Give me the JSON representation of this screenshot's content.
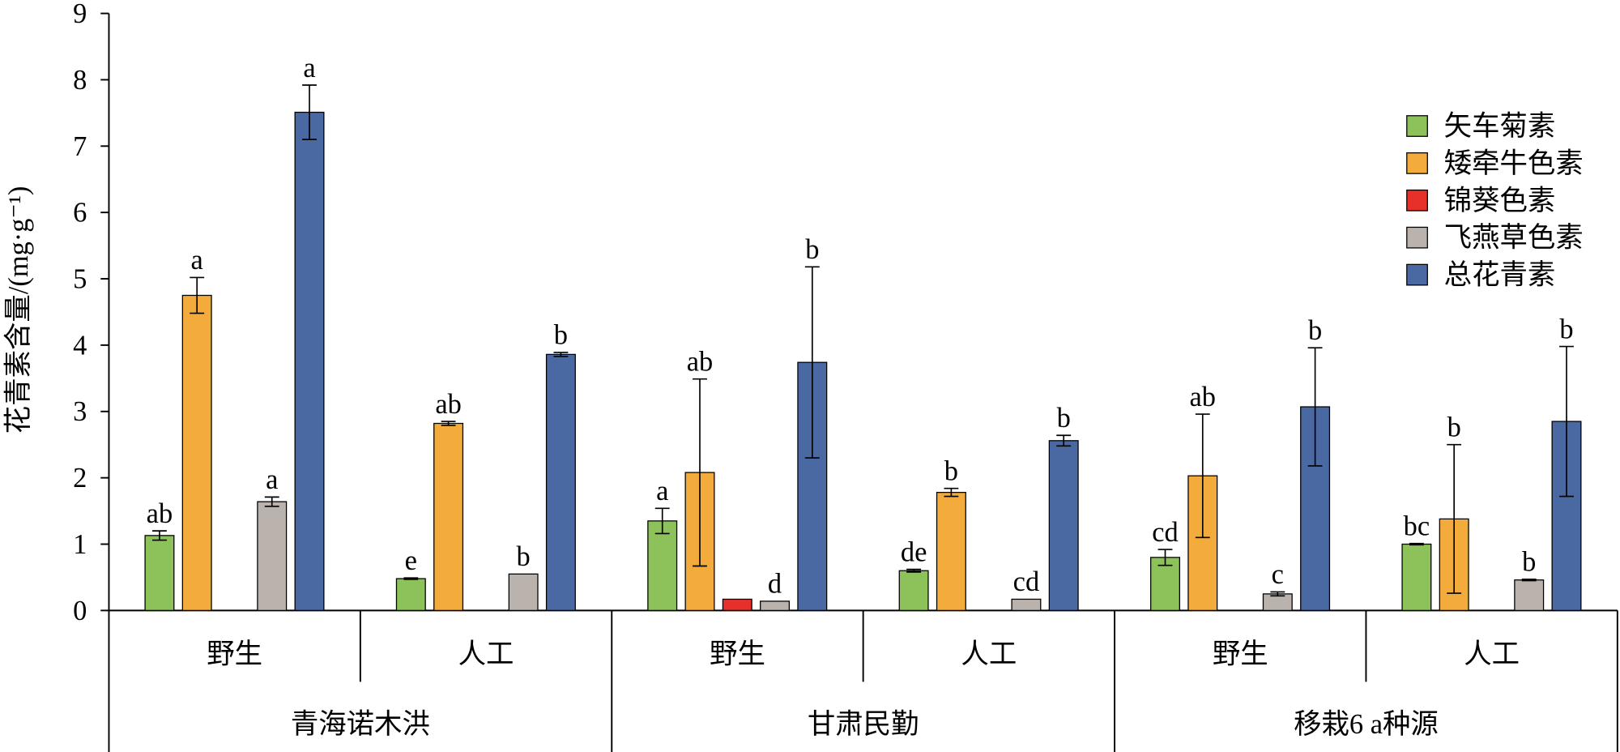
{
  "chart_data": {
    "type": "bar",
    "title": "",
    "ylabel": "花青素含量/(mg·g⁻¹)",
    "xlabel": "",
    "ylim": [
      0,
      9
    ],
    "yticks": [
      0,
      1,
      2,
      3,
      4,
      5,
      6,
      7,
      8,
      9
    ],
    "grid": false,
    "legend_position": "top-right",
    "groups": [
      {
        "label": "青海诺木洪",
        "subgroups": [
          "野生",
          "人工"
        ]
      },
      {
        "label": "甘肃民勤",
        "subgroups": [
          "野生",
          "人工"
        ]
      },
      {
        "label": "移栽6 a种源",
        "subgroups": [
          "野生",
          "人工"
        ]
      }
    ],
    "categories": [
      "野生",
      "人工",
      "野生",
      "人工",
      "野生",
      "人工"
    ],
    "series": [
      {
        "name": "矢车菊素",
        "color": "#8DC15A",
        "values": [
          1.13,
          0.48,
          1.35,
          0.6,
          0.8,
          1.0
        ],
        "errors": [
          0.07,
          0.01,
          0.19,
          0.02,
          0.12,
          0.01
        ],
        "letters": [
          "ab",
          "e",
          "a",
          "de",
          "cd",
          "bc"
        ]
      },
      {
        "name": "矮牵牛色素",
        "color": "#F3AC3C",
        "values": [
          4.75,
          2.82,
          2.08,
          1.78,
          2.03,
          1.38
        ],
        "errors": [
          0.27,
          0.03,
          1.41,
          0.06,
          0.93,
          1.12
        ],
        "letters": [
          "a",
          "ab",
          "ab",
          "b",
          "ab",
          "b"
        ]
      },
      {
        "name": "锦葵色素",
        "color": "#E8302B",
        "values": [
          0,
          0,
          0.17,
          0,
          0,
          0
        ],
        "errors": [
          0,
          0,
          0,
          0,
          0,
          0
        ],
        "letters": [
          "",
          "",
          "",
          "",
          "",
          ""
        ]
      },
      {
        "name": "飞燕草色素",
        "color": "#BAB2AD",
        "values": [
          1.64,
          0.55,
          0.14,
          0.17,
          0.25,
          0.46
        ],
        "errors": [
          0.07,
          0.0,
          0.0,
          0.0,
          0.03,
          0.01
        ],
        "letters": [
          "a",
          "b",
          "d",
          "cd",
          "c",
          "b"
        ]
      },
      {
        "name": "总花青素",
        "color": "#4A69A2",
        "values": [
          7.51,
          3.86,
          3.74,
          2.56,
          3.07,
          2.85
        ],
        "errors": [
          0.41,
          0.03,
          1.44,
          0.08,
          0.89,
          1.13
        ],
        "letters": [
          "a",
          "b",
          "b",
          "b",
          "b",
          "b"
        ]
      }
    ]
  }
}
